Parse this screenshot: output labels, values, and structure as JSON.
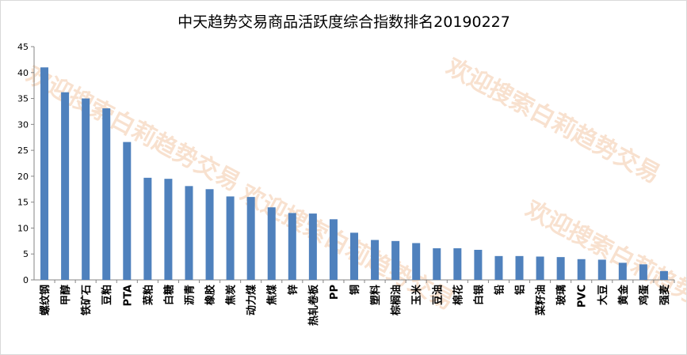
{
  "watermark": "欢迎搜索白莉趋势交易",
  "chart_data": {
    "type": "bar",
    "title": "中天趋势交易商品活跃度综合指数排名20190227",
    "xlabel": "",
    "ylabel": "",
    "ylim": [
      0,
      45
    ],
    "yticks": [
      0,
      5,
      10,
      15,
      20,
      25,
      30,
      35,
      40,
      45
    ],
    "grid": false,
    "legend": "none",
    "bar_color": "#4f81bd",
    "categories": [
      "螺纹钢",
      "甲醇",
      "铁矿石",
      "豆粕",
      "PTA",
      "菜粕",
      "白糖",
      "沥青",
      "橡胶",
      "焦炭",
      "动力煤",
      "焦煤",
      "锌",
      "热轧卷板",
      "PP",
      "铜",
      "塑料",
      "棕榈油",
      "玉米",
      "豆油",
      "棉花",
      "白银",
      "铅",
      "铝",
      "菜籽油",
      "玻璃",
      "PVC",
      "大豆",
      "黄金",
      "鸡蛋",
      "强麦"
    ],
    "values": [
      41,
      36.2,
      35,
      33.1,
      26.6,
      19.7,
      19.5,
      18.1,
      17.5,
      16.1,
      16,
      14,
      12.9,
      12.8,
      11.7,
      9.1,
      7.7,
      7.5,
      7.1,
      6.1,
      6.1,
      5.8,
      4.6,
      4.6,
      4.5,
      4.4,
      4,
      3.9,
      3.3,
      3,
      1.7
    ]
  }
}
